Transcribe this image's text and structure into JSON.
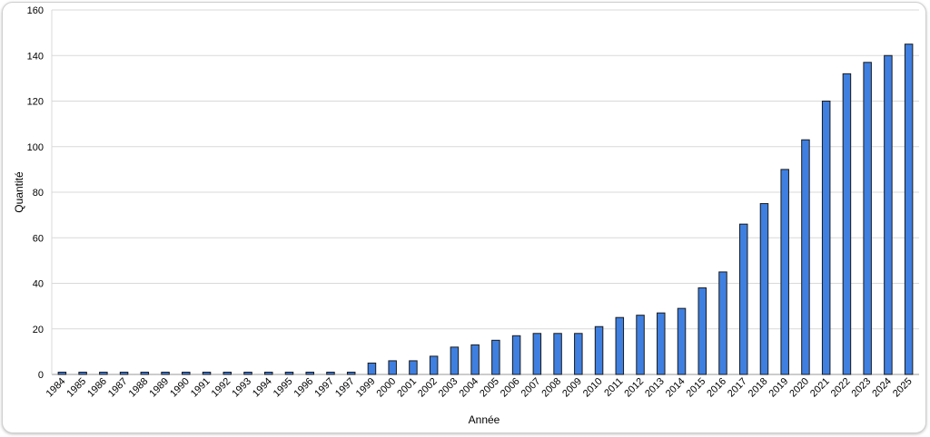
{
  "chart_data": {
    "type": "bar",
    "xlabel": "Année",
    "ylabel": "Quantité",
    "ylim": [
      0,
      160
    ],
    "yticks": [
      0,
      20,
      40,
      60,
      80,
      100,
      120,
      140,
      160
    ],
    "grid": true,
    "bar_color": "#3f7fe0",
    "bar_stroke": "#1a1a1a",
    "categories": [
      "1984",
      "1985",
      "1986",
      "1987",
      "1988",
      "1989",
      "1990",
      "1991",
      "1992",
      "1993",
      "1994",
      "1995",
      "1996",
      "1997",
      "1997",
      "1999",
      "2000",
      "2001",
      "2002",
      "2003",
      "2004",
      "2005",
      "2006",
      "2007",
      "2008",
      "2009",
      "2010",
      "2011",
      "2012",
      "2013",
      "2014",
      "2015",
      "2016",
      "2017",
      "2018",
      "2019",
      "2020",
      "2021",
      "2022",
      "2023",
      "2024",
      "2025"
    ],
    "values": [
      1,
      1,
      1,
      1,
      1,
      1,
      1,
      1,
      1,
      1,
      1,
      1,
      1,
      1,
      1,
      5,
      6,
      6,
      8,
      12,
      13,
      15,
      17,
      18,
      18,
      18,
      21,
      25,
      26,
      27,
      29,
      38,
      45,
      66,
      75,
      90,
      103,
      120,
      132,
      137,
      140,
      145
    ]
  }
}
